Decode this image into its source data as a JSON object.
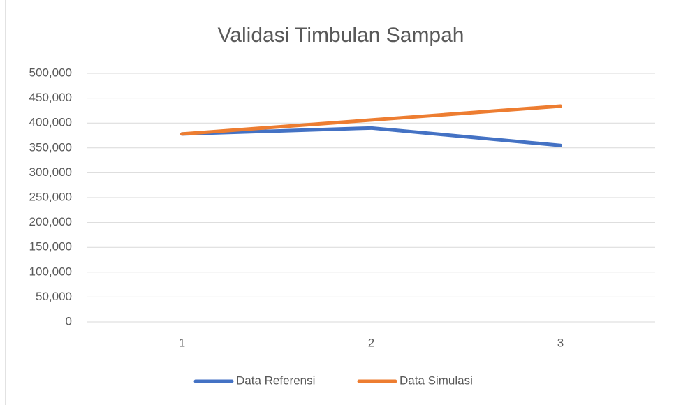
{
  "chart_data": {
    "type": "line",
    "title": "Validasi Timbulan Sampah",
    "categories": [
      "1",
      "2",
      "3"
    ],
    "series": [
      {
        "name": "Data Referensi",
        "color": "#4472c4",
        "values": [
          378000,
          390000,
          355000
        ]
      },
      {
        "name": "Data Simulasi",
        "color": "#ed7d31",
        "values": [
          378000,
          406000,
          434000
        ]
      }
    ],
    "ylim": [
      0,
      500000
    ],
    "yticks": [
      0,
      {
        "value": 50000,
        "label": "50,000"
      },
      {
        "value": 100000,
        "label": "100,000"
      },
      {
        "value": 150000,
        "label": "150,000"
      },
      {
        "value": 200000,
        "label": "200,000"
      },
      {
        "value": 250000,
        "label": "250,000"
      },
      {
        "value": 300000,
        "label": "300,000"
      },
      {
        "value": 350000,
        "label": "350,000"
      },
      {
        "value": 400000,
        "label": "400,000"
      },
      {
        "value": 450000,
        "label": "450,000"
      },
      {
        "value": 500000,
        "label": "500,000"
      }
    ],
    "grid": true,
    "legend": "bottom"
  }
}
